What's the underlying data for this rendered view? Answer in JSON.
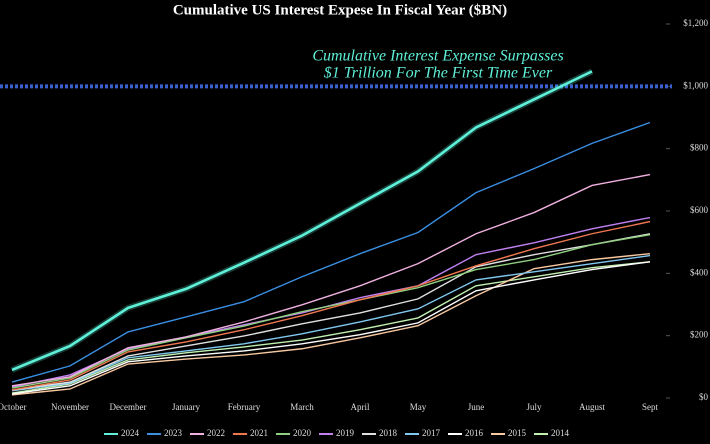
{
  "chart_data": {
    "type": "line",
    "title": "Cumulative US Interest Expese In Fiscal Year ($BN)",
    "annotations": [
      "Cumulative Interest Expense Surpasses",
      "$1 Trillion For The First Time Ever"
    ],
    "categories": [
      "October",
      "November",
      "December",
      "January",
      "February",
      "March",
      "April",
      "May",
      "June",
      "July",
      "August",
      "Sept"
    ],
    "ylim": [
      0,
      1200
    ],
    "yticks": [
      {
        "value": 0,
        "label": "$0"
      },
      {
        "value": 200,
        "label": "$200"
      },
      {
        "value": 400,
        "label": "$400"
      },
      {
        "value": 600,
        "label": "$600"
      },
      {
        "value": 800,
        "label": "$800"
      },
      {
        "value": 1000,
        "label": "$1,000"
      },
      {
        "value": 1200,
        "label": "$1,200"
      }
    ],
    "reference_line": {
      "value": 1000,
      "color": "#3a5fd0"
    },
    "grid": false,
    "legend": "bottom",
    "series": [
      {
        "name": "2024",
        "color": "#5ef0d8",
        "values": [
          90,
          167,
          289,
          350,
          434,
          521,
          624,
          727,
          868,
          958,
          1048,
          null
        ]
      },
      {
        "name": "2023",
        "color": "#3a8ee0",
        "values": [
          51,
          103,
          212,
          260,
          309,
          389,
          463,
          531,
          659,
          736,
          817,
          884
        ]
      },
      {
        "name": "2022",
        "color": "#f0b0e0",
        "values": [
          39,
          68,
          161,
          196,
          244,
          299,
          360,
          431,
          527,
          595,
          682,
          717
        ]
      },
      {
        "name": "2021",
        "color": "#f07850",
        "values": [
          26,
          58,
          148,
          180,
          219,
          264,
          315,
          360,
          424,
          479,
          527,
          566
        ]
      },
      {
        "name": "2020",
        "color": "#90d080",
        "values": [
          32,
          64,
          154,
          193,
          231,
          277,
          315,
          354,
          412,
          444,
          492,
          524
        ]
      },
      {
        "name": "2019",
        "color": "#c080f0",
        "values": [
          35,
          74,
          158,
          196,
          235,
          273,
          322,
          360,
          460,
          498,
          543,
          579
        ]
      },
      {
        "name": "2018",
        "color": "#e0e0e0",
        "values": [
          26,
          51,
          135,
          167,
          199,
          238,
          273,
          318,
          421,
          460,
          492,
          527
        ]
      },
      {
        "name": "2017",
        "color": "#80c8f0",
        "values": [
          23,
          48,
          129,
          151,
          174,
          206,
          244,
          286,
          379,
          405,
          431,
          457
        ]
      },
      {
        "name": "2016",
        "color": "#ffffff",
        "values": [
          13,
          39,
          116,
          135,
          151,
          174,
          203,
          241,
          344,
          379,
          412,
          437
        ]
      },
      {
        "name": "2015",
        "color": "#f8c8a0",
        "values": [
          10,
          29,
          109,
          125,
          138,
          158,
          193,
          232,
          328,
          415,
          444,
          463
        ]
      },
      {
        "name": "2014",
        "color": "#c0f0b0",
        "values": [
          16,
          45,
          122,
          145,
          164,
          186,
          219,
          257,
          360,
          389,
          418,
          437
        ]
      }
    ]
  }
}
